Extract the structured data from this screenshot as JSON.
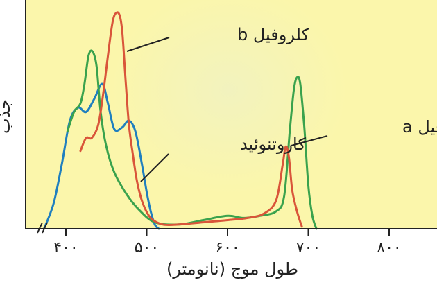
{
  "colors": {
    "plot_background": "#fbf6ab",
    "glow": "#f1f2c0",
    "axis": "#222222",
    "carotenoid": "#1f7fbf",
    "chlorophyll_a": "#3aa24d",
    "chlorophyll_b": "#d9553a"
  },
  "chart_data": {
    "type": "line",
    "xlabel": "طول موج (نانومتر)",
    "ylabel": "جذب",
    "xlim": [
      350,
      850
    ],
    "ylim": [
      0,
      1
    ],
    "x_ticks": [
      400,
      500,
      600,
      700,
      800
    ],
    "x_tick_labels": [
      "۴۰۰",
      "۵۰۰",
      "۶۰۰",
      "۷۰۰",
      "۸۰۰"
    ],
    "axis_break": true,
    "grid": false,
    "legend": "none (series labelled by callouts)",
    "series": [
      {
        "key": "carotenoid",
        "name": "کاروتنوئید",
        "x": [
          373,
          385,
          395,
          405,
          415,
          425,
          435,
          445,
          452,
          460,
          470,
          478,
          486,
          494,
          500,
          505,
          510,
          515
        ],
        "y": [
          0.0,
          0.12,
          0.3,
          0.5,
          0.56,
          0.54,
          0.6,
          0.67,
          0.58,
          0.46,
          0.47,
          0.5,
          0.45,
          0.3,
          0.17,
          0.08,
          0.02,
          0.0
        ]
      },
      {
        "key": "chlorophyll_a",
        "name": "کلروفیل a",
        "x": [
          402,
          410,
          418,
          423,
          428,
          433,
          438,
          443,
          450,
          460,
          475,
          490,
          510,
          540,
          570,
          600,
          620,
          640,
          660,
          670,
          677,
          682,
          686,
          690,
          695,
          700,
          705,
          710
        ],
        "y": [
          0.45,
          0.54,
          0.58,
          0.67,
          0.8,
          0.82,
          0.75,
          0.54,
          0.38,
          0.26,
          0.16,
          0.09,
          0.03,
          0.02,
          0.04,
          0.06,
          0.05,
          0.06,
          0.08,
          0.15,
          0.45,
          0.64,
          0.7,
          0.67,
          0.47,
          0.2,
          0.06,
          0.0
        ]
      },
      {
        "key": "chlorophyll_b",
        "name": "کلروفیل b",
        "x": [
          418,
          425,
          432,
          440,
          446,
          452,
          458,
          463,
          467,
          470,
          474,
          478,
          483,
          488,
          495,
          505,
          520,
          540,
          570,
          600,
          625,
          645,
          660,
          668,
          672,
          676,
          680,
          686,
          692
        ],
        "y": [
          0.36,
          0.42,
          0.42,
          0.48,
          0.62,
          0.8,
          0.96,
          1.0,
          0.98,
          0.9,
          0.68,
          0.48,
          0.34,
          0.22,
          0.12,
          0.05,
          0.02,
          0.02,
          0.03,
          0.04,
          0.05,
          0.07,
          0.13,
          0.29,
          0.38,
          0.33,
          0.18,
          0.08,
          0.01
        ]
      }
    ],
    "annotations": [
      {
        "series": "chlorophyll_b",
        "text": "کلروفیل b"
      },
      {
        "series": "carotenoid",
        "text": "کاروتنوئید"
      },
      {
        "series": "chlorophyll_a",
        "text": "کلروفیل a"
      }
    ]
  }
}
